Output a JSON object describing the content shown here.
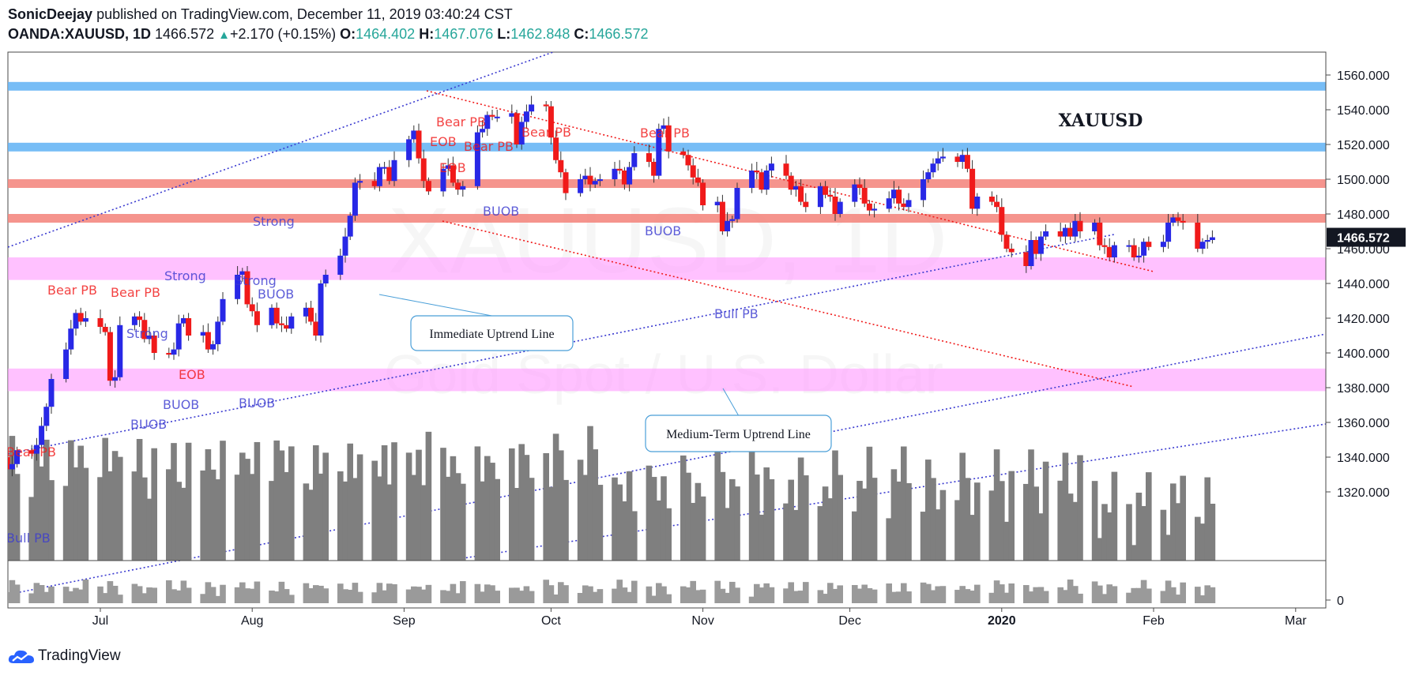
{
  "header": {
    "author": "SonicDeejay",
    "published": "published on TradingView.com, December 11, 2019 03:40:24 CST",
    "symbol": "OANDA:XAUUSD, 1D",
    "last": "1466.572",
    "change": "+2.170 (+0.15%)",
    "o_label": "O:",
    "o": "1464.402",
    "h_label": "H:",
    "h": "1467.076",
    "l_label": "L:",
    "l": "1462.848",
    "c_label": "C:",
    "c": "1466.572"
  },
  "footer": {
    "brand": "TradingView"
  },
  "colors": {
    "up": "#2828e6",
    "down": "#f01a1a",
    "blue_zone": "#64b4f5",
    "red_zone": "#f4857d",
    "pink_zone": "#ff9bff",
    "volume": "#7f7f7f"
  },
  "chart_data": {
    "type": "candlestick",
    "title": "XAUUSD",
    "watermark": [
      "XAUUSD, 1D",
      "Gold Spot / U.S. Dollar"
    ],
    "price_label": "1466.572",
    "y_ticks": [
      "1560.000",
      "1540.000",
      "1520.000",
      "1500.000",
      "1480.000",
      "1460.000",
      "1440.000",
      "1420.000",
      "1400.000",
      "1380.000",
      "1360.000",
      "1340.000",
      "1320.000"
    ],
    "volume_tick": "0",
    "x_ticks": [
      {
        "label": "Jul",
        "date": "2019-07-01"
      },
      {
        "label": "Aug",
        "date": "2019-08-01"
      },
      {
        "label": "Sep",
        "date": "2019-09-01"
      },
      {
        "label": "Oct",
        "date": "2019-10-01"
      },
      {
        "label": "Nov",
        "date": "2019-11-01"
      },
      {
        "label": "Dec",
        "date": "2019-12-01"
      },
      {
        "label": "2020",
        "date": "2020-01-01"
      },
      {
        "label": "Feb",
        "date": "2020-02-01"
      },
      {
        "label": "Mar",
        "date": "2020-03-01"
      }
    ],
    "zones": [
      {
        "color": "blue",
        "low": 1551,
        "high": 1556
      },
      {
        "color": "blue",
        "low": 1516,
        "high": 1521
      },
      {
        "color": "red",
        "low": 1495,
        "high": 1500
      },
      {
        "color": "red",
        "low": 1475,
        "high": 1480
      },
      {
        "color": "pink",
        "low": 1442,
        "high": 1455
      },
      {
        "color": "pink",
        "low": 1378,
        "high": 1391
      }
    ],
    "closes": [
      1337,
      1340,
      1333,
      1336,
      1344,
      1342,
      1347,
      1358,
      1369,
      1385,
      1402,
      1414,
      1423,
      1418,
      1420,
      1415,
      1412,
      1384,
      1386,
      1416,
      1421,
      1419,
      1408,
      1410,
      1400,
      1399,
      1402,
      1417,
      1420,
      1410,
      1412,
      1402,
      1405,
      1418,
      1431,
      1445,
      1447,
      1428,
      1424,
      1416,
      1426,
      1417,
      1416,
      1414,
      1421,
      1426,
      1418,
      1410,
      1440,
      1445,
      1456,
      1467,
      1479,
      1498,
      1499,
      1496,
      1507,
      1507,
      1499,
      1511,
      1523,
      1528,
      1512,
      1499,
      1493,
      1506,
      1508,
      1498,
      1494,
      1496,
      1527,
      1529,
      1537,
      1536,
      1536,
      1538,
      1520,
      1533,
      1539,
      1543,
      1542,
      1524,
      1511,
      1504,
      1492,
      1500,
      1502,
      1497,
      1499,
      1500,
      1506,
      1505,
      1497,
      1507,
      1515,
      1510,
      1502,
      1529,
      1531,
      1516,
      1514,
      1508,
      1501,
      1498,
      1485,
      1487,
      1470,
      1476,
      1477,
      1495,
      1505,
      1504,
      1494,
      1505,
      1509,
      1502,
      1494,
      1496,
      1487,
      1484,
      1496,
      1491,
      1490,
      1480,
      1487,
      1497,
      1495,
      1486,
      1482,
      1483,
      1489,
      1494,
      1486,
      1484,
      1488,
      1500,
      1504,
      1509,
      1512,
      1513,
      1510,
      1514,
      1506,
      1483,
      1490,
      1487,
      1484,
      1468,
      1460,
      1458,
      1450,
      1465,
      1457,
      1467,
      1470,
      1467,
      1472,
      1467,
      1476,
      1470,
      1475,
      1462,
      1461,
      1455,
      1462,
      1462,
      1455,
      1456,
      1464,
      1461,
      1464,
      1475,
      1478,
      1476,
      1475,
      1460,
      1464,
      1465,
      1466.572
    ],
    "annotations": [
      {
        "text": "Bear PB"
      },
      {
        "text": "Bear PB"
      },
      {
        "text": "Bear PB"
      },
      {
        "text": "Bear PB"
      },
      {
        "text": "Bear PB"
      },
      {
        "text": "Bear PB"
      },
      {
        "text": "Bear PB"
      },
      {
        "text": "Bull PB"
      },
      {
        "text": "Bull PB"
      },
      {
        "text": "Strong"
      },
      {
        "text": "Strong"
      },
      {
        "text": "Strong"
      },
      {
        "text": "Strong"
      },
      {
        "text": "BUOB"
      },
      {
        "text": "BUOB"
      },
      {
        "text": "BUOB"
      },
      {
        "text": "BUOB"
      },
      {
        "text": "BUOB"
      },
      {
        "text": "BUOB"
      },
      {
        "text": "BUOB"
      },
      {
        "text": "EOB"
      },
      {
        "text": "EOB"
      },
      {
        "text": "EOB"
      }
    ],
    "callouts": [
      {
        "text": "Immediate Uptrend Line"
      },
      {
        "text": "Medium-Term Uptrend Line"
      }
    ]
  }
}
